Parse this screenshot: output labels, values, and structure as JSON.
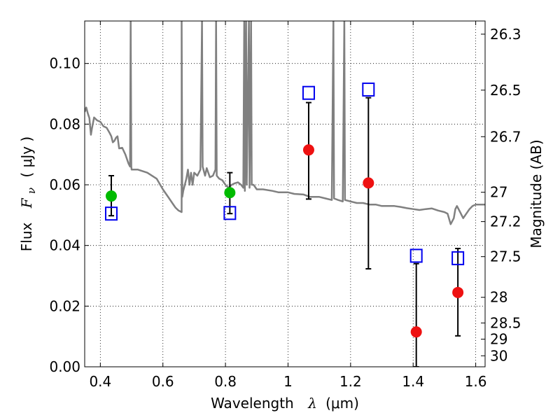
{
  "chart_data": {
    "type": "scatter",
    "xlabel": {
      "prefix": "Wavelength",
      "symbol": "λ",
      "unit": "(μm)"
    },
    "ylabel": {
      "prefix": "Flux",
      "symbol": "F",
      "subscript": "ν",
      "unit": "( μJy )"
    },
    "ylabel_right": "Magnitude (AB)",
    "xlim": [
      0.35,
      1.63
    ],
    "ylim": [
      0,
      0.114
    ],
    "x_ticks": [
      0.4,
      0.6,
      0.8,
      1.0,
      1.2,
      1.4,
      1.6
    ],
    "x_tick_labels": [
      "0.4",
      "0.6",
      "0.8",
      "1",
      "1.2",
      "1.4",
      "1.6"
    ],
    "y_ticks": [
      0.0,
      0.02,
      0.04,
      0.06,
      0.08,
      0.1
    ],
    "y_tick_labels": [
      "0.00",
      "0.02",
      "0.04",
      "0.06",
      "0.08",
      "0.10"
    ],
    "right_ticks": [
      26.3,
      26.5,
      26.7,
      27,
      27.2,
      27.5,
      28,
      28.5,
      29,
      30
    ],
    "right_tick_labels": [
      "26.3",
      "26.5",
      "26.7",
      "27",
      "27.2",
      "27.5",
      "28",
      "28.5",
      "29",
      "30"
    ],
    "grid": true,
    "series": [
      {
        "marker": "green-circle",
        "color": "#00bb00",
        "points": [
          {
            "x": 0.435,
            "y": 0.0563,
            "yerr_low": 0.0498,
            "yerr_high": 0.063
          },
          {
            "x": 0.814,
            "y": 0.0574,
            "yerr_low": 0.0505,
            "yerr_high": 0.064
          }
        ]
      },
      {
        "marker": "red-circle",
        "color": "#ee1111",
        "points": [
          {
            "x": 1.066,
            "y": 0.0715,
            "yerr_low": 0.0553,
            "yerr_high": 0.0871
          },
          {
            "x": 1.257,
            "y": 0.0606,
            "yerr_low": 0.0323,
            "yerr_high": 0.0887
          },
          {
            "x": 1.41,
            "y": 0.0115,
            "yerr_low": 0.0,
            "yerr_high": 0.034
          },
          {
            "x": 1.543,
            "y": 0.0245,
            "yerr_low": 0.0102,
            "yerr_high": 0.039
          }
        ]
      },
      {
        "marker": "blue-open-square",
        "color": "#0000ee",
        "points": [
          {
            "x": 0.435,
            "y": 0.0505
          },
          {
            "x": 0.814,
            "y": 0.0507
          },
          {
            "x": 1.066,
            "y": 0.0903
          },
          {
            "x": 1.257,
            "y": 0.0914
          },
          {
            "x": 1.41,
            "y": 0.0366
          },
          {
            "x": 1.543,
            "y": 0.0358
          }
        ]
      }
    ],
    "spectrum": {
      "color": "#808080",
      "points": [
        [
          0.35,
          0.084
        ],
        [
          0.355,
          0.0855
        ],
        [
          0.36,
          0.0835
        ],
        [
          0.365,
          0.082
        ],
        [
          0.37,
          0.0765
        ],
        [
          0.373,
          0.0785
        ],
        [
          0.38,
          0.0822
        ],
        [
          0.39,
          0.0812
        ],
        [
          0.4,
          0.0808
        ],
        [
          0.41,
          0.0793
        ],
        [
          0.42,
          0.0788
        ],
        [
          0.43,
          0.077
        ],
        [
          0.435,
          0.076
        ],
        [
          0.44,
          0.074
        ],
        [
          0.445,
          0.0745
        ],
        [
          0.45,
          0.0755
        ],
        [
          0.455,
          0.076
        ],
        [
          0.46,
          0.072
        ],
        [
          0.47,
          0.0722
        ],
        [
          0.48,
          0.07
        ],
        [
          0.49,
          0.067
        ],
        [
          0.495,
          0.066
        ],
        [
          0.497,
          0.114
        ],
        [
          0.499,
          0.066
        ],
        [
          0.5,
          0.065
        ],
        [
          0.52,
          0.065
        ],
        [
          0.55,
          0.064
        ],
        [
          0.58,
          0.062
        ],
        [
          0.6,
          0.0585
        ],
        [
          0.62,
          0.0555
        ],
        [
          0.63,
          0.054
        ],
        [
          0.64,
          0.0525
        ],
        [
          0.65,
          0.0515
        ],
        [
          0.66,
          0.051
        ],
        [
          0.66,
          0.114
        ],
        [
          0.662,
          0.056
        ],
        [
          0.665,
          0.058
        ],
        [
          0.675,
          0.062
        ],
        [
          0.68,
          0.065
        ],
        [
          0.685,
          0.06
        ],
        [
          0.69,
          0.064
        ],
        [
          0.695,
          0.06
        ],
        [
          0.7,
          0.064
        ],
        [
          0.71,
          0.063
        ],
        [
          0.72,
          0.065
        ],
        [
          0.725,
          0.114
        ],
        [
          0.727,
          0.066
        ],
        [
          0.735,
          0.063
        ],
        [
          0.74,
          0.0655
        ],
        [
          0.75,
          0.0625
        ],
        [
          0.76,
          0.063
        ],
        [
          0.768,
          0.065
        ],
        [
          0.77,
          0.114
        ],
        [
          0.772,
          0.063
        ],
        [
          0.78,
          0.062
        ],
        [
          0.79,
          0.0615
        ],
        [
          0.8,
          0.06
        ],
        [
          0.81,
          0.059
        ],
        [
          0.82,
          0.06
        ],
        [
          0.83,
          0.0605
        ],
        [
          0.84,
          0.0608
        ],
        [
          0.85,
          0.06
        ],
        [
          0.857,
          0.059
        ],
        [
          0.86,
          0.114
        ],
        [
          0.862,
          0.058
        ],
        [
          0.866,
          0.114
        ],
        [
          0.868,
          0.06
        ],
        [
          0.875,
          0.114
        ],
        [
          0.877,
          0.059
        ],
        [
          0.882,
          0.114
        ],
        [
          0.884,
          0.06
        ],
        [
          0.89,
          0.06
        ],
        [
          0.9,
          0.0585
        ],
        [
          0.92,
          0.0585
        ],
        [
          0.95,
          0.058
        ],
        [
          0.97,
          0.0575
        ],
        [
          1.0,
          0.0575
        ],
        [
          1.02,
          0.057
        ],
        [
          1.05,
          0.0568
        ],
        [
          1.07,
          0.056
        ],
        [
          1.09,
          0.056
        ],
        [
          1.1,
          0.056
        ],
        [
          1.12,
          0.0555
        ],
        [
          1.14,
          0.055
        ],
        [
          1.145,
          0.114
        ],
        [
          1.147,
          0.0555
        ],
        [
          1.16,
          0.055
        ],
        [
          1.175,
          0.0545
        ],
        [
          1.18,
          0.114
        ],
        [
          1.182,
          0.055
        ],
        [
          1.2,
          0.0545
        ],
        [
          1.22,
          0.054
        ],
        [
          1.24,
          0.054
        ],
        [
          1.26,
          0.0535
        ],
        [
          1.28,
          0.0535
        ],
        [
          1.3,
          0.053
        ],
        [
          1.32,
          0.053
        ],
        [
          1.34,
          0.053
        ],
        [
          1.36,
          0.0527
        ],
        [
          1.38,
          0.0523
        ],
        [
          1.4,
          0.052
        ],
        [
          1.42,
          0.0517
        ],
        [
          1.44,
          0.052
        ],
        [
          1.46,
          0.0522
        ],
        [
          1.48,
          0.0515
        ],
        [
          1.5,
          0.051
        ],
        [
          1.51,
          0.0505
        ],
        [
          1.52,
          0.047
        ],
        [
          1.53,
          0.049
        ],
        [
          1.535,
          0.052
        ],
        [
          1.54,
          0.053
        ],
        [
          1.55,
          0.051
        ],
        [
          1.56,
          0.049
        ],
        [
          1.58,
          0.052
        ],
        [
          1.59,
          0.053
        ],
        [
          1.6,
          0.0535
        ],
        [
          1.62,
          0.0535
        ],
        [
          1.63,
          0.0535
        ]
      ]
    }
  }
}
